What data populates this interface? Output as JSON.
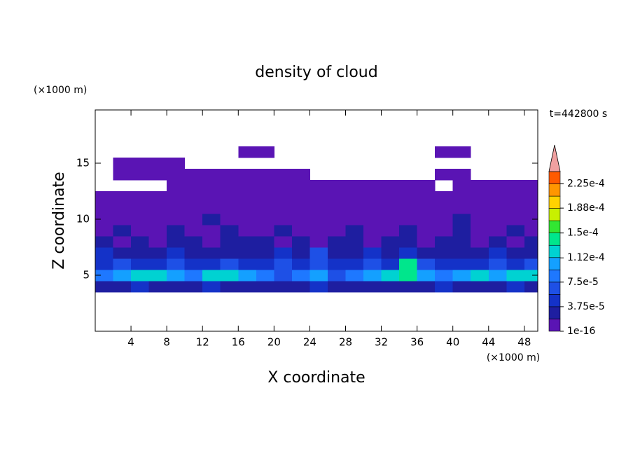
{
  "chart_data": {
    "type": "contour",
    "title": "density of cloud",
    "xlabel": "X coordinate",
    "ylabel": "Z coordinate",
    "xunit": "(×1000 m)",
    "yunit": "(×1000 m)",
    "annotation": "t=442800 s",
    "xlim": [
      0,
      49.5
    ],
    "ylim": [
      0,
      19.75
    ],
    "xticks": [
      4,
      8,
      12,
      16,
      20,
      24,
      28,
      32,
      36,
      40,
      44,
      48
    ],
    "yticks": [
      5,
      10,
      15
    ],
    "x": [
      1,
      3,
      5,
      7,
      9,
      11,
      13,
      15,
      17,
      19,
      21,
      23,
      25,
      27,
      29,
      31,
      33,
      35,
      37,
      39,
      41,
      43,
      45,
      47,
      49
    ],
    "y": [
      4,
      5,
      6,
      7,
      8,
      9,
      10,
      11,
      12,
      13,
      14,
      15,
      16
    ],
    "field": [
      [
        2.5e-05,
        2.5e-05,
        4.5e-05,
        2.5e-05,
        2.5e-05,
        2.5e-05,
        4.5e-05,
        2.5e-05,
        2.5e-05,
        2.5e-05,
        2.5e-05,
        2.5e-05,
        4.5e-05,
        2.5e-05,
        2.5e-05,
        2.5e-05,
        2.5e-05,
        2.5e-05,
        2.5e-05,
        4.5e-05,
        2.5e-05,
        2.5e-05,
        2.5e-05,
        4.5e-05,
        2.5e-05
      ],
      [
        8.5e-05,
        0.0001,
        0.00012,
        0.00012,
        0.0001,
        8.5e-05,
        0.00012,
        0.00012,
        0.0001,
        8.5e-05,
        6.5e-05,
        8.5e-05,
        0.0001,
        6.5e-05,
        8.5e-05,
        0.0001,
        0.00012,
        0.00014,
        0.0001,
        8.5e-05,
        0.0001,
        0.00012,
        0.0001,
        0.00012,
        0.00012
      ],
      [
        4.5e-05,
        6.5e-05,
        4.5e-05,
        4.5e-05,
        6.5e-05,
        4.5e-05,
        4.5e-05,
        6.5e-05,
        4.5e-05,
        4.5e-05,
        6.5e-05,
        4.5e-05,
        6.5e-05,
        4.5e-05,
        4.5e-05,
        6.5e-05,
        4.5e-05,
        0.00014,
        6.5e-05,
        4.5e-05,
        4.5e-05,
        4.5e-05,
        6.5e-05,
        4.5e-05,
        6.5e-05
      ],
      [
        4.5e-05,
        2.5e-05,
        2.5e-05,
        2.5e-05,
        4.5e-05,
        2.5e-05,
        2.5e-05,
        2.5e-05,
        2.5e-05,
        2.5e-05,
        4.5e-05,
        2.5e-05,
        6.5e-05,
        2.5e-05,
        2.5e-05,
        4.5e-05,
        2.5e-05,
        4.5e-05,
        2.5e-05,
        2.5e-05,
        2.5e-05,
        2.5e-05,
        4.5e-05,
        2.5e-05,
        2.5e-05
      ],
      [
        2.5e-05,
        5e-06,
        2.5e-05,
        5e-06,
        2.5e-05,
        2.5e-05,
        5e-06,
        2.5e-05,
        2.5e-05,
        2.5e-05,
        5e-06,
        2.5e-05,
        5e-06,
        2.5e-05,
        2.5e-05,
        5e-06,
        2.5e-05,
        2.5e-05,
        5e-06,
        2.5e-05,
        2.5e-05,
        5e-06,
        2.5e-05,
        5e-06,
        2.5e-05
      ],
      [
        5e-06,
        2.5e-05,
        5e-06,
        5e-06,
        2.5e-05,
        5e-06,
        5e-06,
        2.5e-05,
        5e-06,
        5e-06,
        2.5e-05,
        5e-06,
        5e-06,
        5e-06,
        2.5e-05,
        5e-06,
        5e-06,
        2.5e-05,
        5e-06,
        5e-06,
        2.5e-05,
        5e-06,
        5e-06,
        2.5e-05,
        5e-06
      ],
      [
        5e-06,
        5e-06,
        5e-06,
        5e-06,
        5e-06,
        5e-06,
        2.5e-05,
        5e-06,
        5e-06,
        5e-06,
        5e-06,
        5e-06,
        5e-06,
        5e-06,
        5e-06,
        5e-06,
        5e-06,
        5e-06,
        5e-06,
        5e-06,
        2.5e-05,
        5e-06,
        5e-06,
        5e-06,
        5e-06
      ],
      [
        5e-06,
        5e-06,
        5e-06,
        5e-06,
        5e-06,
        5e-06,
        5e-06,
        5e-06,
        5e-06,
        5e-06,
        5e-06,
        5e-06,
        5e-06,
        5e-06,
        5e-06,
        5e-06,
        5e-06,
        5e-06,
        5e-06,
        5e-06,
        5e-06,
        5e-06,
        5e-06,
        5e-06,
        5e-06
      ],
      [
        5e-06,
        5e-06,
        5e-06,
        5e-06,
        5e-06,
        5e-06,
        5e-06,
        5e-06,
        5e-06,
        5e-06,
        5e-06,
        5e-06,
        5e-06,
        5e-06,
        5e-06,
        5e-06,
        5e-06,
        5e-06,
        5e-06,
        5e-06,
        5e-06,
        5e-06,
        5e-06,
        5e-06,
        5e-06
      ],
      [
        null,
        null,
        null,
        null,
        5e-06,
        5e-06,
        5e-06,
        5e-06,
        5e-06,
        5e-06,
        5e-06,
        5e-06,
        5e-06,
        5e-06,
        5e-06,
        5e-06,
        5e-06,
        5e-06,
        5e-06,
        null,
        5e-06,
        5e-06,
        5e-06,
        5e-06,
        5e-06
      ],
      [
        null,
        5e-06,
        5e-06,
        5e-06,
        5e-06,
        5e-06,
        5e-06,
        5e-06,
        5e-06,
        5e-06,
        5e-06,
        5e-06,
        null,
        null,
        null,
        null,
        null,
        null,
        null,
        5e-06,
        5e-06,
        null,
        null,
        null,
        null
      ],
      [
        null,
        5e-06,
        5e-06,
        5e-06,
        5e-06,
        null,
        null,
        null,
        null,
        null,
        null,
        null,
        null,
        null,
        null,
        null,
        null,
        null,
        null,
        null,
        null,
        null,
        null,
        null,
        null
      ],
      [
        null,
        null,
        null,
        null,
        null,
        null,
        null,
        null,
        5e-06,
        5e-06,
        null,
        null,
        null,
        null,
        null,
        null,
        null,
        null,
        null,
        5e-06,
        5e-06,
        null,
        null,
        null,
        null
      ]
    ],
    "levels": [
      1e-16,
      1.875e-05,
      3.75e-05,
      5.625e-05,
      7.5e-05,
      9.375e-05,
      0.0001125,
      0.00013125,
      0.00015,
      0.00016875,
      0.0001875,
      0.00020625,
      0.000225,
      0.00024375
    ],
    "colors": [
      "#5a14b4",
      "#1e1ea0",
      "#1432c8",
      "#1e50e6",
      "#1e78ff",
      "#14a0ff",
      "#00d2d2",
      "#00e68c",
      "#32e632",
      "#c8f000",
      "#ffd200",
      "#ff9600",
      "#ff5a00"
    ],
    "extend_color": "#f0a0a0",
    "cbar_ticks": [
      {
        "value": 1e-16,
        "label": "1e-16"
      },
      {
        "value": 3.75e-05,
        "label": "3.75e-5"
      },
      {
        "value": 7.5e-05,
        "label": "7.5e-5"
      },
      {
        "value": 0.000112,
        "label": "1.12e-4"
      },
      {
        "value": 0.00015,
        "label": "1.5e-4"
      },
      {
        "value": 0.000188,
        "label": "1.88e-4"
      },
      {
        "value": 0.000225,
        "label": "2.25e-4"
      }
    ]
  }
}
